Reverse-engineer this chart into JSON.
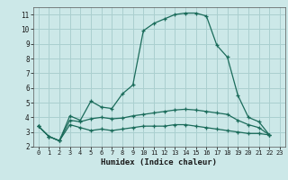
{
  "title": "",
  "xlabel": "Humidex (Indice chaleur)",
  "bg_color": "#cce8e8",
  "grid_color": "#aacfcf",
  "line_color": "#1a6b5a",
  "xlim": [
    -0.5,
    23.5
  ],
  "ylim": [
    2,
    11.5
  ],
  "yticks": [
    2,
    3,
    4,
    5,
    6,
    7,
    8,
    9,
    10,
    11
  ],
  "xticks": [
    0,
    1,
    2,
    3,
    4,
    5,
    6,
    7,
    8,
    9,
    10,
    11,
    12,
    13,
    14,
    15,
    16,
    17,
    18,
    19,
    20,
    21,
    22,
    23
  ],
  "series": [
    {
      "x": [
        0,
        1,
        2,
        3,
        4,
        5,
        6,
        7,
        8,
        9,
        10,
        11,
        12,
        13,
        14,
        15,
        16,
        17,
        18,
        19,
        20,
        21,
        22
      ],
      "y": [
        3.4,
        2.7,
        2.4,
        4.1,
        3.8,
        5.1,
        4.7,
        4.6,
        5.6,
        6.2,
        9.9,
        10.4,
        10.7,
        11.0,
        11.1,
        11.1,
        10.9,
        8.9,
        8.1,
        5.5,
        4.0,
        3.7,
        2.8
      ]
    },
    {
      "x": [
        0,
        1,
        2,
        3,
        4,
        5,
        6,
        7,
        8,
        9,
        10,
        11,
        12,
        13,
        14,
        15,
        16,
        17,
        18,
        19,
        20,
        21,
        22
      ],
      "y": [
        3.4,
        2.7,
        2.4,
        3.8,
        3.7,
        3.9,
        4.0,
        3.9,
        3.95,
        4.1,
        4.2,
        4.3,
        4.4,
        4.5,
        4.55,
        4.5,
        4.4,
        4.3,
        4.2,
        3.8,
        3.5,
        3.3,
        2.8
      ]
    },
    {
      "x": [
        0,
        1,
        2,
        3,
        4,
        5,
        6,
        7,
        8,
        9,
        10,
        11,
        12,
        13,
        14,
        15,
        16,
        17,
        18,
        19,
        20,
        21,
        22
      ],
      "y": [
        3.4,
        2.7,
        2.4,
        3.5,
        3.3,
        3.1,
        3.2,
        3.1,
        3.2,
        3.3,
        3.4,
        3.4,
        3.4,
        3.5,
        3.5,
        3.4,
        3.3,
        3.2,
        3.1,
        3.0,
        2.9,
        2.9,
        2.8
      ]
    }
  ]
}
